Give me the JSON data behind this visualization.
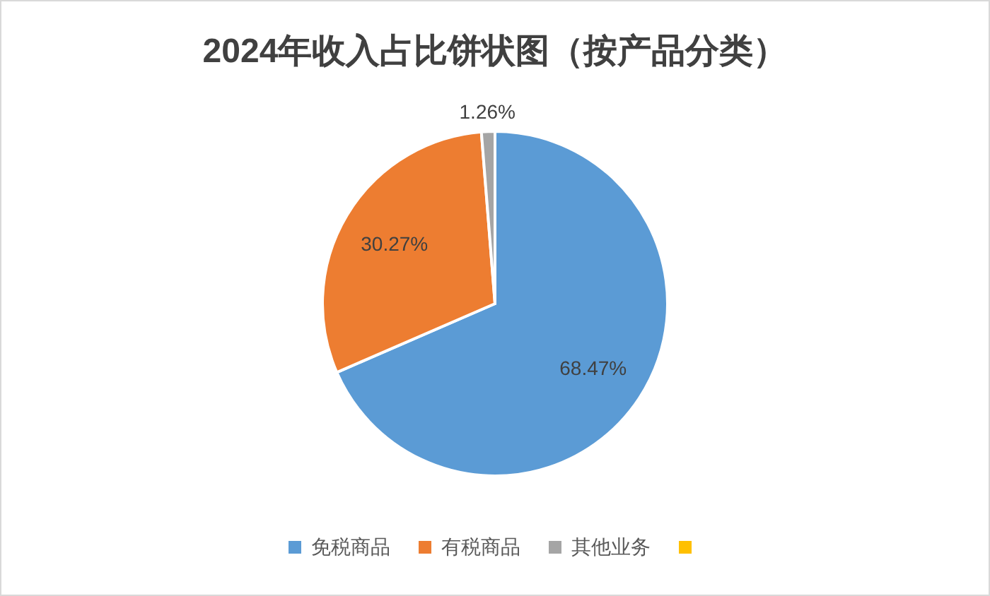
{
  "chart_data": {
    "type": "pie",
    "title": "2024年收入占比饼状图（按产品分类）",
    "categories": [
      "免税商品",
      "有税商品",
      "其他业务",
      null
    ],
    "values": [
      68.47,
      30.27,
      1.26,
      0
    ],
    "colors": [
      "#5b9bd5",
      "#ed7d31",
      "#a5a5a5",
      "#ffc000"
    ],
    "value_labels": [
      "68.47%",
      "30.27%",
      "1.26%",
      null
    ],
    "legend": "bottom"
  }
}
